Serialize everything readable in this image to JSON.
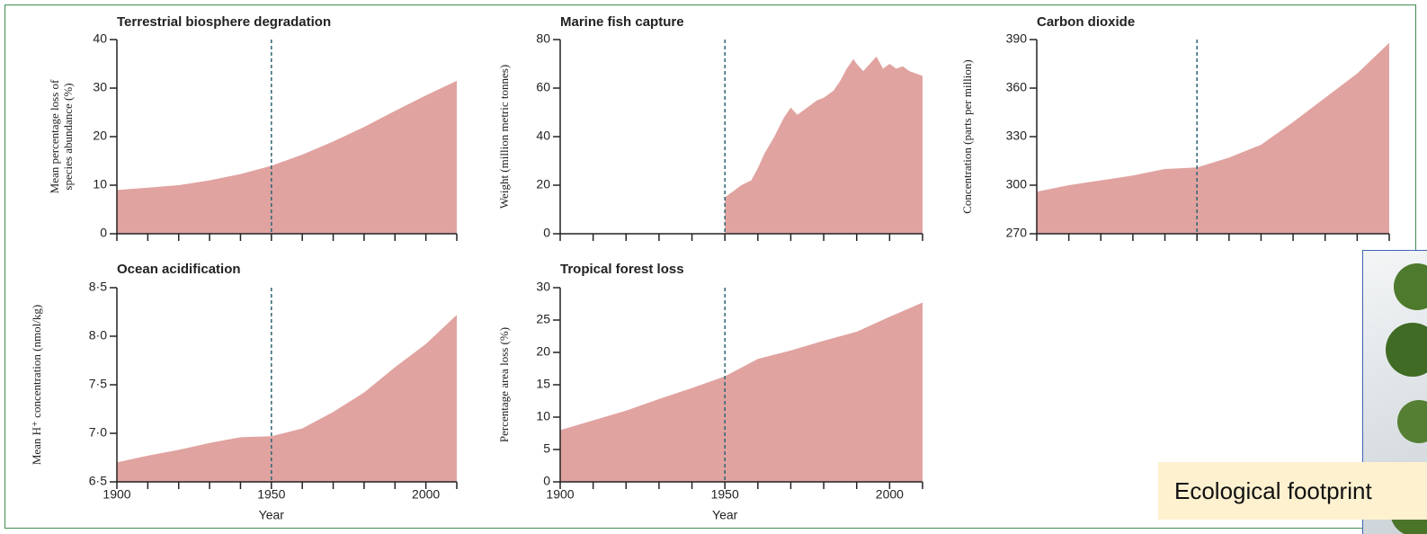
{
  "chart_data": [
    {
      "type": "area",
      "title": "Terrestrial biosphere degradation",
      "ylabel": [
        "Mean percentage loss of",
        "species abundance (%)"
      ],
      "x": [
        1900,
        1910,
        1920,
        1930,
        1940,
        1950,
        1960,
        1970,
        1980,
        1990,
        2000,
        2010
      ],
      "values": [
        9,
        9.5,
        10,
        11,
        12.3,
        14,
        16.3,
        19,
        22,
        25.3,
        28.5,
        31.5
      ],
      "color": "#e0a3a0",
      "xlim": [
        1900,
        2010
      ],
      "ylim": [
        0,
        40
      ],
      "yticks": [
        0,
        10,
        20,
        30,
        40
      ],
      "xticks": [
        1900,
        1950,
        2000
      ],
      "minor_xticks": [
        1910,
        1920,
        1930,
        1940,
        1960,
        1970,
        1980,
        1990,
        2010
      ],
      "xtick_labels": false,
      "marker_x": 1950
    },
    {
      "type": "area",
      "title": "Marine fish capture",
      "ylabel": [
        "Weight (million metric tonnes)"
      ],
      "x": [
        1950,
        1952,
        1955,
        1958,
        1960,
        1962,
        1965,
        1968,
        1970,
        1972,
        1975,
        1978,
        1980,
        1983,
        1985,
        1987,
        1989,
        1990,
        1992,
        1994,
        1996,
        1998,
        2000,
        2002,
        2004,
        2006,
        2008,
        2010
      ],
      "values": [
        15,
        17,
        20,
        22,
        27,
        33,
        40,
        48,
        52,
        49,
        52,
        55,
        56,
        59,
        63,
        68,
        72,
        70,
        67,
        70,
        73,
        68,
        70,
        68,
        69,
        67,
        66,
        65
      ],
      "color": "#e0a3a0",
      "xlim": [
        1900,
        2010
      ],
      "ylim": [
        0,
        80
      ],
      "yticks": [
        0,
        20,
        40,
        60,
        80
      ],
      "xticks": [
        1900,
        1950,
        2000
      ],
      "minor_xticks": [
        1910,
        1920,
        1930,
        1940,
        1960,
        1970,
        1980,
        1990,
        2010
      ],
      "xtick_labels": false,
      "marker_x": 1950
    },
    {
      "type": "area",
      "title": "Carbon dioxide",
      "ylabel": [
        "Concentration (parts per million)"
      ],
      "x": [
        1900,
        1910,
        1920,
        1930,
        1940,
        1950,
        1960,
        1970,
        1980,
        1990,
        2000,
        2010
      ],
      "values": [
        296,
        300,
        303,
        306,
        310,
        311,
        317,
        325,
        339,
        354,
        369,
        388
      ],
      "color": "#e0a3a0",
      "xlim": [
        1900,
        2010
      ],
      "ylim": [
        270,
        390
      ],
      "yticks": [
        270,
        300,
        330,
        360,
        390
      ],
      "xticks": [
        1900,
        1950,
        2000
      ],
      "minor_xticks": [
        1910,
        1920,
        1930,
        1940,
        1960,
        1970,
        1980,
        1990,
        2010
      ],
      "xtick_labels": false,
      "marker_x": 1950
    },
    {
      "type": "area",
      "title": "Ocean acidification",
      "ylabel": [
        "Mean H⁺ concentration (nmol/kg)"
      ],
      "xlabel": "Year",
      "x": [
        1900,
        1910,
        1920,
        1930,
        1940,
        1950,
        1960,
        1970,
        1980,
        1990,
        2000,
        2010
      ],
      "values": [
        6.7,
        6.77,
        6.83,
        6.9,
        6.96,
        6.97,
        7.05,
        7.22,
        7.42,
        7.68,
        7.92,
        8.22
      ],
      "color": "#e0a3a0",
      "xlim": [
        1900,
        2010
      ],
      "ylim": [
        6.5,
        8.5
      ],
      "yticks": [
        {
          "value": 6.5,
          "label": "6·5"
        },
        {
          "value": 7,
          "label": "7·0"
        },
        {
          "value": 7.5,
          "label": "7·5"
        },
        {
          "value": 8,
          "label": "8·0"
        },
        {
          "value": 8.5,
          "label": "8·5"
        }
      ],
      "xticks": [
        1900,
        1950,
        2000
      ],
      "minor_xticks": [
        1910,
        1920,
        1930,
        1940,
        1960,
        1970,
        1980,
        1990,
        2010
      ],
      "xtick_labels": true,
      "marker_x": 1950
    },
    {
      "type": "area",
      "title": "Tropical forest loss",
      "ylabel": [
        "Percentage area loss (%)"
      ],
      "xlabel": "Year",
      "x": [
        1900,
        1910,
        1920,
        1930,
        1940,
        1950,
        1960,
        1970,
        1980,
        1990,
        2000,
        2010
      ],
      "values": [
        8,
        9.5,
        11,
        12.8,
        14.5,
        16.3,
        19,
        20.3,
        21.8,
        23.2,
        25.5,
        27.7
      ],
      "color": "#e0a3a0",
      "xlim": [
        1900,
        2010
      ],
      "ylim": [
        0,
        30
      ],
      "yticks": [
        0,
        5,
        10,
        15,
        20,
        25,
        30
      ],
      "xticks": [
        1900,
        1950,
        2000
      ],
      "minor_xticks": [
        1910,
        1920,
        1930,
        1940,
        1960,
        1970,
        1980,
        1990,
        2010
      ],
      "xtick_labels": true,
      "marker_x": 1950
    }
  ],
  "callout": {
    "text": "Ecological footprint"
  }
}
